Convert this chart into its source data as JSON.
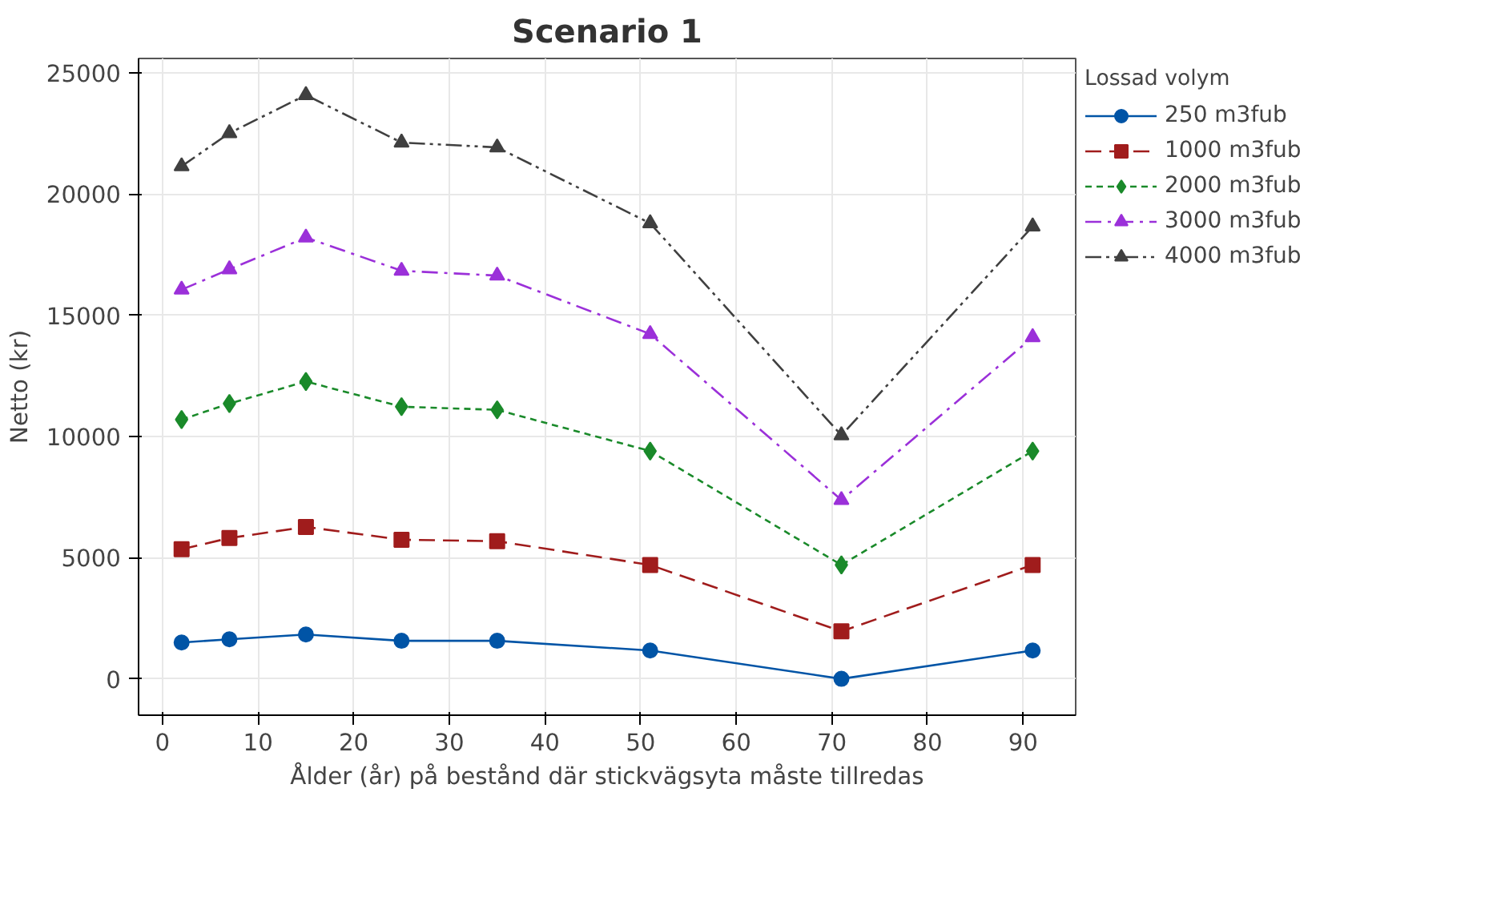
{
  "chart_data": {
    "type": "line",
    "title": "Scenario 1",
    "xlabel": "Ålder (år) på bestånd där stickvägsyta måste tillredas",
    "ylabel": "Netto (kr)",
    "legend_title": "Lossad volym",
    "legend": "right",
    "grid": true,
    "x": [
      2,
      7,
      15,
      25,
      35,
      51,
      71,
      91
    ],
    "xlim": [
      -2.5,
      95.5
    ],
    "xticks": [
      0,
      10,
      20,
      30,
      40,
      50,
      60,
      70,
      80,
      90
    ],
    "ylim": [
      -1500,
      25600
    ],
    "yticks": [
      0,
      5000,
      10000,
      15000,
      20000,
      25000
    ],
    "series": [
      {
        "name": "250 m3fub",
        "color": "#0054a6",
        "marker": "circle",
        "line_style": "solid",
        "values": [
          1500,
          1630,
          1830,
          1570,
          1570,
          1170,
          0,
          1170
        ]
      },
      {
        "name": "1000 m3fub",
        "color": "#a01c1c",
        "marker": "square",
        "line_style": "dashed",
        "values": [
          5350,
          5810,
          6270,
          5740,
          5680,
          4700,
          1960,
          4700
        ]
      },
      {
        "name": "2000 m3fub",
        "color": "#1a8a2a",
        "marker": "diamond",
        "line_style": "dotted",
        "values": [
          10700,
          11360,
          12270,
          11230,
          11100,
          9400,
          4700,
          9400
        ]
      },
      {
        "name": "3000 m3fub",
        "color": "#9b30d9",
        "marker": "triangle",
        "line_style": "dashdot",
        "values": [
          16060,
          16900,
          18210,
          16840,
          16640,
          14230,
          7380,
          14100
        ]
      },
      {
        "name": "4000 m3fub",
        "color": "#404040",
        "marker": "triangle",
        "line_style": "dashdotdot",
        "values": [
          21150,
          22520,
          24090,
          22130,
          21930,
          18800,
          10050,
          18670
        ]
      }
    ]
  }
}
